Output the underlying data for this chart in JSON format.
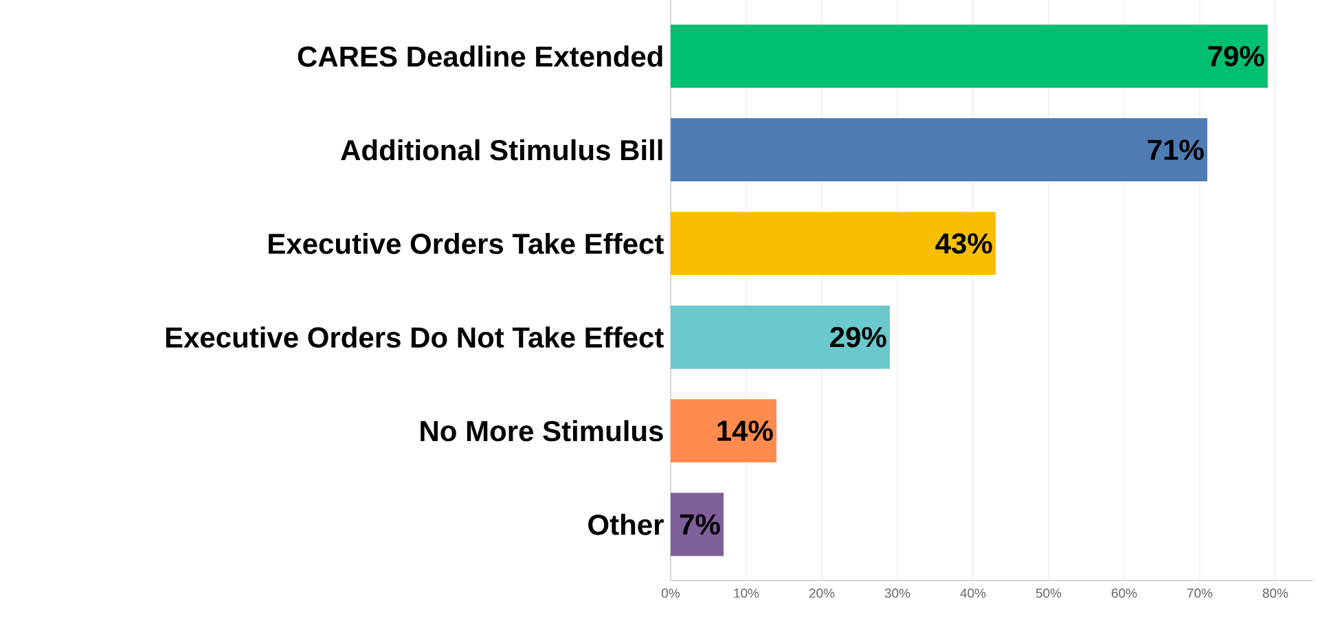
{
  "chart_data": {
    "type": "bar",
    "orientation": "horizontal",
    "categories": [
      "CARES Deadline Extended",
      "Additional Stimulus Bill",
      "Executive Orders Take Effect",
      "Executive Orders Do Not Take Effect",
      "No More Stimulus",
      "Other"
    ],
    "values": [
      79,
      71,
      43,
      29,
      14,
      7
    ],
    "colors": [
      "#00bf6f",
      "#507cb6",
      "#f9be00",
      "#6bc8cd",
      "#ff8b4f",
      "#7f5f9a"
    ],
    "value_labels": [
      "79%",
      "71%",
      "43%",
      "29%",
      "14%",
      "7%"
    ],
    "xlim": [
      0,
      85
    ],
    "xticks": [
      {
        "value": 0,
        "label": "0%"
      },
      {
        "value": 10,
        "label": "10%"
      },
      {
        "value": 20,
        "label": "20%"
      },
      {
        "value": 30,
        "label": "30%"
      },
      {
        "value": 40,
        "label": "40%"
      },
      {
        "value": 50,
        "label": "50%"
      },
      {
        "value": 60,
        "label": "60%"
      },
      {
        "value": 70,
        "label": "70%"
      },
      {
        "value": 80,
        "label": "80%"
      }
    ],
    "grid": "x"
  }
}
